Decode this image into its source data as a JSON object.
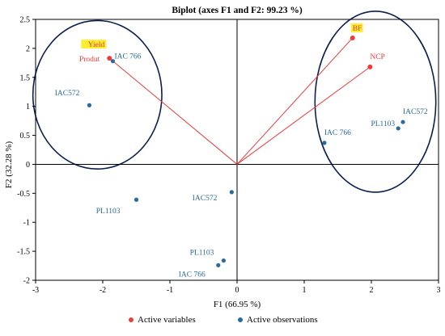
{
  "chart_data": {
    "type": "scatter",
    "title": "Biplot (axes F1 and F2: 99.23 %)",
    "xlabel": "F1 (66.95 %)",
    "ylabel": "F2 (32.28 %)",
    "xlim": [
      -3,
      3
    ],
    "ylim": [
      -2,
      2.5
    ],
    "xticks": [
      "-3",
      "-2",
      "-1",
      "0",
      "1",
      "2",
      "3"
    ],
    "yticks": [
      "-2",
      "-1.5",
      "-1",
      "-0.5",
      "0",
      "0.5",
      "1",
      "1.5",
      "2",
      "2.5"
    ],
    "grid": false,
    "legend_position": "bottom",
    "variables": {
      "name": "Active variables",
      "color": "#ef3b3b",
      "points": [
        {
          "label": "Yield",
          "x": -1.9,
          "y": 1.83,
          "highlight": true
        },
        {
          "label": "Produt",
          "x": -1.9,
          "y": 1.83,
          "highlight": false
        },
        {
          "label": "BF",
          "x": 1.72,
          "y": 2.18,
          "highlight": true
        },
        {
          "label": "NCP",
          "x": 1.98,
          "y": 1.68,
          "highlight": false
        }
      ]
    },
    "observations": {
      "name": "Active observations",
      "color": "#2b6a99",
      "points": [
        {
          "label": "IAC 766",
          "x": -1.85,
          "y": 1.78
        },
        {
          "label": "IAC572",
          "x": -2.2,
          "y": 1.02
        },
        {
          "label": "IAC572",
          "x": -0.08,
          "y": -0.48
        },
        {
          "label": "PL1103",
          "x": -1.5,
          "y": -0.61
        },
        {
          "label": "PL1103",
          "x": -0.2,
          "y": -1.66
        },
        {
          "label": "IAC 766",
          "x": -0.28,
          "y": -1.74
        },
        {
          "label": "IAC 766",
          "x": 1.3,
          "y": 0.37
        },
        {
          "label": "PL1103",
          "x": 2.4,
          "y": 0.62
        },
        {
          "label": "IAC572",
          "x": 2.47,
          "y": 0.73
        }
      ]
    },
    "circles": [
      {
        "cx": -2.08,
        "cy": 1.2,
        "rx": 0.96,
        "ry": 1.28
      },
      {
        "cx": 2.06,
        "cy": 1.08,
        "rx": 0.9,
        "ry": 1.56
      }
    ],
    "highlight_color": "#ffee33",
    "circle_color": "#0d1f4f"
  }
}
